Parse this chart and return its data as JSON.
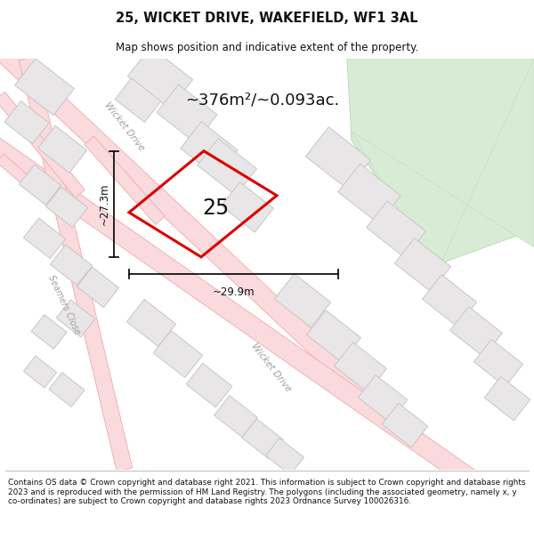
{
  "title": "25, WICKET DRIVE, WAKEFIELD, WF1 3AL",
  "subtitle": "Map shows position and indicative extent of the property.",
  "area_text": "~376m²/~0.093ac.",
  "width_label": "~29.9m",
  "height_label": "~27.3m",
  "plot_number": "25",
  "footer_text": "Contains OS data © Crown copyright and database right 2021. This information is subject to Crown copyright and database rights 2023 and is reproduced with the permission of HM Land Registry. The polygons (including the associated geometry, namely x, y co-ordinates) are subject to Crown copyright and database rights 2023 Ordnance Survey 100026316.",
  "map_bg": "#f5f3f3",
  "road_color": "#fadadd",
  "road_stroke": "#f0aaaa",
  "road_stroke_lw": 0.6,
  "building_fill": "#e8e6e6",
  "building_stroke": "#c8c6c6",
  "plot_stroke": "#dd0000",
  "plot_fill": "none",
  "green_fill": "#d8ecd5",
  "green_stroke": "#c0dfc0",
  "footer_bg": "#ffffff",
  "title_color": "#111111",
  "dim_line_color": "#111111",
  "road_label_color": "#a0a0a0",
  "building_lw": 0.7
}
